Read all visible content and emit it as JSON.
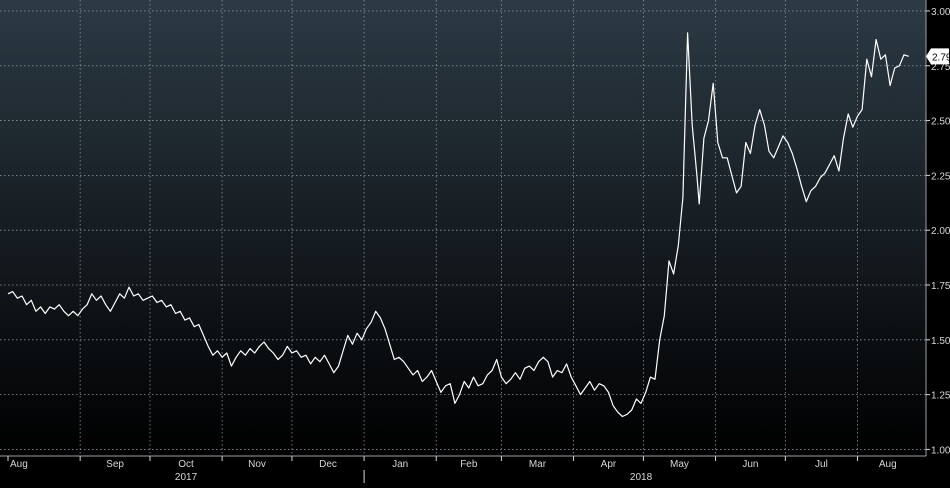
{
  "chart_data": {
    "type": "line",
    "title": "",
    "xlabel": "",
    "ylabel": "",
    "ylim": [
      0.97,
      3.05
    ],
    "y_ticks": [
      {
        "value": 1.0,
        "label": "1.00"
      },
      {
        "value": 1.25,
        "label": "1.25"
      },
      {
        "value": 1.5,
        "label": "1.50"
      },
      {
        "value": 1.75,
        "label": "1.75"
      },
      {
        "value": 2.0,
        "label": "2.00"
      },
      {
        "value": 2.25,
        "label": "2.25"
      },
      {
        "value": 2.5,
        "label": "2.50"
      },
      {
        "value": 2.75,
        "label": "2.75"
      },
      {
        "value": 3.0,
        "label": "3.00"
      }
    ],
    "x_range": [
      "2017-08-01",
      "2018-08-27"
    ],
    "month_ticks": [
      {
        "date": "2017-08-01",
        "label": "Aug"
      },
      {
        "date": "2017-09-01",
        "label": "Sep"
      },
      {
        "date": "2017-10-01",
        "label": "Oct"
      },
      {
        "date": "2017-11-01",
        "label": "Nov"
      },
      {
        "date": "2017-12-01",
        "label": "Dec"
      },
      {
        "date": "2018-01-01",
        "label": "Jan"
      },
      {
        "date": "2018-02-01",
        "label": "Feb"
      },
      {
        "date": "2018-03-01",
        "label": "Mar"
      },
      {
        "date": "2018-04-01",
        "label": "Apr"
      },
      {
        "date": "2018-05-01",
        "label": "May"
      },
      {
        "date": "2018-06-01",
        "label": "Jun"
      },
      {
        "date": "2018-07-01",
        "label": "Jul"
      },
      {
        "date": "2018-08-01",
        "label": "Aug"
      }
    ],
    "year_labels": [
      {
        "start": "2017-08-01",
        "end": "2018-01-01",
        "label": "2017"
      },
      {
        "start": "2018-01-01",
        "end": "2018-08-27",
        "label": "2018"
      }
    ],
    "last_value_label": "2.793",
    "grid": true,
    "colors": {
      "background_top": "#2c3a44",
      "background_bottom": "#000000",
      "line": "#ffffff",
      "grid": "#8a9299",
      "tick_text": "#d6d6d6"
    },
    "series": [
      {
        "points": [
          [
            "2017-08-01",
            1.71
          ],
          [
            "2017-08-03",
            1.72
          ],
          [
            "2017-08-05",
            1.69
          ],
          [
            "2017-08-07",
            1.7
          ],
          [
            "2017-08-09",
            1.66
          ],
          [
            "2017-08-11",
            1.68
          ],
          [
            "2017-08-13",
            1.63
          ],
          [
            "2017-08-15",
            1.65
          ],
          [
            "2017-08-17",
            1.62
          ],
          [
            "2017-08-19",
            1.65
          ],
          [
            "2017-08-21",
            1.64
          ],
          [
            "2017-08-23",
            1.66
          ],
          [
            "2017-08-25",
            1.63
          ],
          [
            "2017-08-27",
            1.61
          ],
          [
            "2017-08-29",
            1.63
          ],
          [
            "2017-08-31",
            1.61
          ],
          [
            "2017-09-02",
            1.64
          ],
          [
            "2017-09-04",
            1.66
          ],
          [
            "2017-09-06",
            1.71
          ],
          [
            "2017-09-08",
            1.68
          ],
          [
            "2017-09-10",
            1.7
          ],
          [
            "2017-09-12",
            1.66
          ],
          [
            "2017-09-14",
            1.63
          ],
          [
            "2017-09-16",
            1.67
          ],
          [
            "2017-09-18",
            1.71
          ],
          [
            "2017-09-20",
            1.69
          ],
          [
            "2017-09-22",
            1.74
          ],
          [
            "2017-09-24",
            1.7
          ],
          [
            "2017-09-26",
            1.71
          ],
          [
            "2017-09-28",
            1.68
          ],
          [
            "2017-09-30",
            1.69
          ],
          [
            "2017-10-02",
            1.7
          ],
          [
            "2017-10-04",
            1.67
          ],
          [
            "2017-10-06",
            1.68
          ],
          [
            "2017-10-08",
            1.65
          ],
          [
            "2017-10-10",
            1.66
          ],
          [
            "2017-10-12",
            1.62
          ],
          [
            "2017-10-14",
            1.63
          ],
          [
            "2017-10-16",
            1.59
          ],
          [
            "2017-10-18",
            1.6
          ],
          [
            "2017-10-20",
            1.56
          ],
          [
            "2017-10-22",
            1.57
          ],
          [
            "2017-10-24",
            1.52
          ],
          [
            "2017-10-26",
            1.47
          ],
          [
            "2017-10-28",
            1.43
          ],
          [
            "2017-10-30",
            1.45
          ],
          [
            "2017-11-01",
            1.42
          ],
          [
            "2017-11-03",
            1.44
          ],
          [
            "2017-11-05",
            1.38
          ],
          [
            "2017-11-07",
            1.42
          ],
          [
            "2017-11-09",
            1.45
          ],
          [
            "2017-11-11",
            1.43
          ],
          [
            "2017-11-13",
            1.46
          ],
          [
            "2017-11-15",
            1.44
          ],
          [
            "2017-11-17",
            1.47
          ],
          [
            "2017-11-19",
            1.49
          ],
          [
            "2017-11-21",
            1.46
          ],
          [
            "2017-11-23",
            1.44
          ],
          [
            "2017-11-25",
            1.41
          ],
          [
            "2017-11-27",
            1.43
          ],
          [
            "2017-11-29",
            1.47
          ],
          [
            "2017-12-01",
            1.44
          ],
          [
            "2017-12-03",
            1.45
          ],
          [
            "2017-12-05",
            1.42
          ],
          [
            "2017-12-07",
            1.43
          ],
          [
            "2017-12-09",
            1.39
          ],
          [
            "2017-12-11",
            1.42
          ],
          [
            "2017-12-13",
            1.4
          ],
          [
            "2017-12-15",
            1.43
          ],
          [
            "2017-12-17",
            1.39
          ],
          [
            "2017-12-19",
            1.35
          ],
          [
            "2017-12-21",
            1.38
          ],
          [
            "2017-12-23",
            1.45
          ],
          [
            "2017-12-25",
            1.52
          ],
          [
            "2017-12-27",
            1.48
          ],
          [
            "2017-12-29",
            1.53
          ],
          [
            "2017-12-31",
            1.5
          ],
          [
            "2018-01-02",
            1.55
          ],
          [
            "2018-01-04",
            1.58
          ],
          [
            "2018-01-06",
            1.63
          ],
          [
            "2018-01-08",
            1.6
          ],
          [
            "2018-01-10",
            1.55
          ],
          [
            "2018-01-12",
            1.48
          ],
          [
            "2018-01-14",
            1.41
          ],
          [
            "2018-01-16",
            1.42
          ],
          [
            "2018-01-18",
            1.4
          ],
          [
            "2018-01-20",
            1.37
          ],
          [
            "2018-01-22",
            1.34
          ],
          [
            "2018-01-24",
            1.36
          ],
          [
            "2018-01-26",
            1.31
          ],
          [
            "2018-01-28",
            1.33
          ],
          [
            "2018-01-30",
            1.36
          ],
          [
            "2018-02-01",
            1.31
          ],
          [
            "2018-02-03",
            1.26
          ],
          [
            "2018-02-05",
            1.29
          ],
          [
            "2018-02-07",
            1.3
          ],
          [
            "2018-02-09",
            1.21
          ],
          [
            "2018-02-11",
            1.25
          ],
          [
            "2018-02-13",
            1.31
          ],
          [
            "2018-02-15",
            1.28
          ],
          [
            "2018-02-17",
            1.33
          ],
          [
            "2018-02-19",
            1.29
          ],
          [
            "2018-02-21",
            1.3
          ],
          [
            "2018-02-23",
            1.34
          ],
          [
            "2018-02-25",
            1.36
          ],
          [
            "2018-02-27",
            1.41
          ],
          [
            "2018-03-01",
            1.33
          ],
          [
            "2018-03-03",
            1.3
          ],
          [
            "2018-03-05",
            1.32
          ],
          [
            "2018-03-07",
            1.35
          ],
          [
            "2018-03-09",
            1.32
          ],
          [
            "2018-03-11",
            1.37
          ],
          [
            "2018-03-13",
            1.38
          ],
          [
            "2018-03-15",
            1.36
          ],
          [
            "2018-03-17",
            1.4
          ],
          [
            "2018-03-19",
            1.42
          ],
          [
            "2018-03-21",
            1.4
          ],
          [
            "2018-03-23",
            1.33
          ],
          [
            "2018-03-25",
            1.36
          ],
          [
            "2018-03-27",
            1.35
          ],
          [
            "2018-03-29",
            1.39
          ],
          [
            "2018-03-31",
            1.33
          ],
          [
            "2018-04-02",
            1.29
          ],
          [
            "2018-04-04",
            1.25
          ],
          [
            "2018-04-06",
            1.28
          ],
          [
            "2018-04-08",
            1.31
          ],
          [
            "2018-04-10",
            1.27
          ],
          [
            "2018-04-12",
            1.3
          ],
          [
            "2018-04-14",
            1.29
          ],
          [
            "2018-04-16",
            1.26
          ],
          [
            "2018-04-18",
            1.2
          ],
          [
            "2018-04-20",
            1.17
          ],
          [
            "2018-04-22",
            1.15
          ],
          [
            "2018-04-24",
            1.16
          ],
          [
            "2018-04-26",
            1.18
          ],
          [
            "2018-04-28",
            1.23
          ],
          [
            "2018-04-30",
            1.21
          ],
          [
            "2018-05-02",
            1.26
          ],
          [
            "2018-05-04",
            1.33
          ],
          [
            "2018-05-06",
            1.32
          ],
          [
            "2018-05-08",
            1.5
          ],
          [
            "2018-05-10",
            1.61
          ],
          [
            "2018-05-12",
            1.86
          ],
          [
            "2018-05-14",
            1.8
          ],
          [
            "2018-05-16",
            1.93
          ],
          [
            "2018-05-18",
            2.15
          ],
          [
            "2018-05-20",
            2.9
          ],
          [
            "2018-05-22",
            2.48
          ],
          [
            "2018-05-24",
            2.25
          ],
          [
            "2018-05-25",
            2.12
          ],
          [
            "2018-05-27",
            2.42
          ],
          [
            "2018-05-29",
            2.5
          ],
          [
            "2018-05-31",
            2.67
          ],
          [
            "2018-06-02",
            2.4
          ],
          [
            "2018-06-04",
            2.33
          ],
          [
            "2018-06-06",
            2.33
          ],
          [
            "2018-06-08",
            2.25
          ],
          [
            "2018-06-10",
            2.17
          ],
          [
            "2018-06-12",
            2.2
          ],
          [
            "2018-06-14",
            2.4
          ],
          [
            "2018-06-16",
            2.35
          ],
          [
            "2018-06-18",
            2.48
          ],
          [
            "2018-06-20",
            2.55
          ],
          [
            "2018-06-22",
            2.48
          ],
          [
            "2018-06-24",
            2.36
          ],
          [
            "2018-06-26",
            2.33
          ],
          [
            "2018-06-28",
            2.38
          ],
          [
            "2018-06-30",
            2.43
          ],
          [
            "2018-07-02",
            2.4
          ],
          [
            "2018-07-04",
            2.35
          ],
          [
            "2018-07-06",
            2.28
          ],
          [
            "2018-07-08",
            2.2
          ],
          [
            "2018-07-10",
            2.13
          ],
          [
            "2018-07-12",
            2.18
          ],
          [
            "2018-07-14",
            2.2
          ],
          [
            "2018-07-16",
            2.24
          ],
          [
            "2018-07-18",
            2.26
          ],
          [
            "2018-07-20",
            2.3
          ],
          [
            "2018-07-22",
            2.34
          ],
          [
            "2018-07-24",
            2.27
          ],
          [
            "2018-07-26",
            2.42
          ],
          [
            "2018-07-28",
            2.53
          ],
          [
            "2018-07-30",
            2.47
          ],
          [
            "2018-08-01",
            2.52
          ],
          [
            "2018-08-03",
            2.55
          ],
          [
            "2018-08-05",
            2.78
          ],
          [
            "2018-08-07",
            2.7
          ],
          [
            "2018-08-09",
            2.87
          ],
          [
            "2018-08-11",
            2.78
          ],
          [
            "2018-08-13",
            2.8
          ],
          [
            "2018-08-15",
            2.66
          ],
          [
            "2018-08-17",
            2.74
          ],
          [
            "2018-08-19",
            2.75
          ],
          [
            "2018-08-21",
            2.8
          ],
          [
            "2018-08-23",
            2.793
          ]
        ]
      }
    ]
  }
}
